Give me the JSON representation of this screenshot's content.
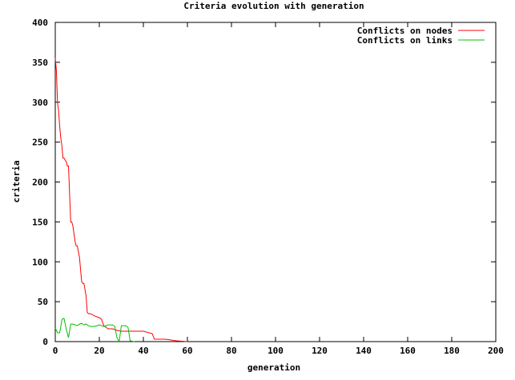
{
  "chart_data": {
    "type": "line",
    "title": "Criteria evolution with generation",
    "xlabel": "generation",
    "ylabel": "criteria",
    "xlim": [
      0,
      200
    ],
    "ylim": [
      0,
      400
    ],
    "xticks": [
      0,
      20,
      40,
      60,
      80,
      100,
      120,
      140,
      160,
      180,
      200
    ],
    "yticks": [
      0,
      50,
      100,
      150,
      200,
      250,
      300,
      350,
      400
    ],
    "xtick_labels": [
      "0",
      "20",
      "40",
      "60",
      "80",
      "100",
      "120",
      "140",
      "160",
      "180",
      "200"
    ],
    "ytick_labels": [
      "0",
      "50",
      "100",
      "150",
      "200",
      "250",
      "300",
      "350",
      "400"
    ],
    "grid": false,
    "legend_position": "top-right",
    "series": [
      {
        "name": "Conflicts on nodes",
        "color": "#ff0000",
        "x": [
          0,
          0.5,
          1,
          1.5,
          2,
          2.5,
          3,
          3.5,
          4,
          5,
          5.5,
          6,
          6.5,
          7,
          7.5,
          8,
          9,
          9.5,
          10,
          11,
          11.5,
          12,
          12.5,
          13,
          14,
          14.5,
          15,
          16,
          18,
          20,
          21,
          22,
          24,
          26,
          28,
          30,
          35,
          40,
          44,
          45,
          50,
          55,
          60
        ],
        "y": [
          355,
          340,
          300,
          290,
          270,
          255,
          245,
          230,
          230,
          225,
          220,
          220,
          185,
          150,
          150,
          145,
          125,
          120,
          120,
          105,
          90,
          75,
          73,
          73,
          57,
          37,
          35,
          35,
          32,
          30,
          28,
          20,
          16,
          16,
          14,
          13,
          13,
          13,
          10,
          3,
          3,
          1,
          0
        ]
      },
      {
        "name": "Conflicts on links",
        "color": "#00c000",
        "x": [
          0,
          1,
          2,
          3,
          3.5,
          4,
          5,
          6,
          7,
          7.5,
          8,
          10,
          11,
          12,
          13,
          14,
          15,
          16,
          18,
          20,
          22,
          24,
          26,
          27,
          28,
          29,
          30,
          31,
          32,
          33,
          34,
          36
        ],
        "y": [
          17,
          11,
          11,
          27,
          29,
          29,
          15,
          5,
          22,
          22,
          22,
          20,
          22,
          23,
          21,
          22,
          20,
          19,
          19,
          21,
          19,
          21,
          21,
          19,
          5,
          0,
          20,
          20,
          20,
          18,
          1,
          0
        ]
      }
    ]
  }
}
